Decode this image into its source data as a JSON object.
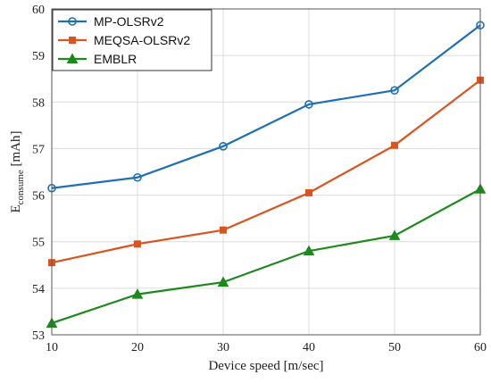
{
  "chart_data": {
    "type": "line",
    "xlabel": "Device speed [m/sec]",
    "ylabel": {
      "main": "E",
      "sub": "consume",
      "unit": " [mAh]"
    },
    "x": [
      10,
      20,
      30,
      40,
      50,
      60
    ],
    "xlim": [
      10,
      60
    ],
    "ylim": [
      53,
      60
    ],
    "xticks": [
      "10",
      "20",
      "30",
      "40",
      "50",
      "60"
    ],
    "yticks": [
      "53",
      "54",
      "55",
      "56",
      "57",
      "58",
      "59",
      "60"
    ],
    "grid": true,
    "legend_position": "top-left",
    "series": [
      {
        "name": "MP-OLSRv2",
        "color": "#1f6fb4",
        "marker": "circle",
        "values": [
          56.15,
          56.38,
          57.05,
          57.95,
          58.25,
          59.65
        ]
      },
      {
        "name": "MEQSA-OLSRv2",
        "color": "#d9541e",
        "marker": "square",
        "values": [
          54.55,
          54.95,
          55.25,
          56.05,
          57.07,
          58.47
        ]
      },
      {
        "name": "EMBLR",
        "color": "#1b8a1b",
        "marker": "triangle",
        "values": [
          53.25,
          53.87,
          54.13,
          54.8,
          55.13,
          56.13
        ]
      }
    ]
  }
}
